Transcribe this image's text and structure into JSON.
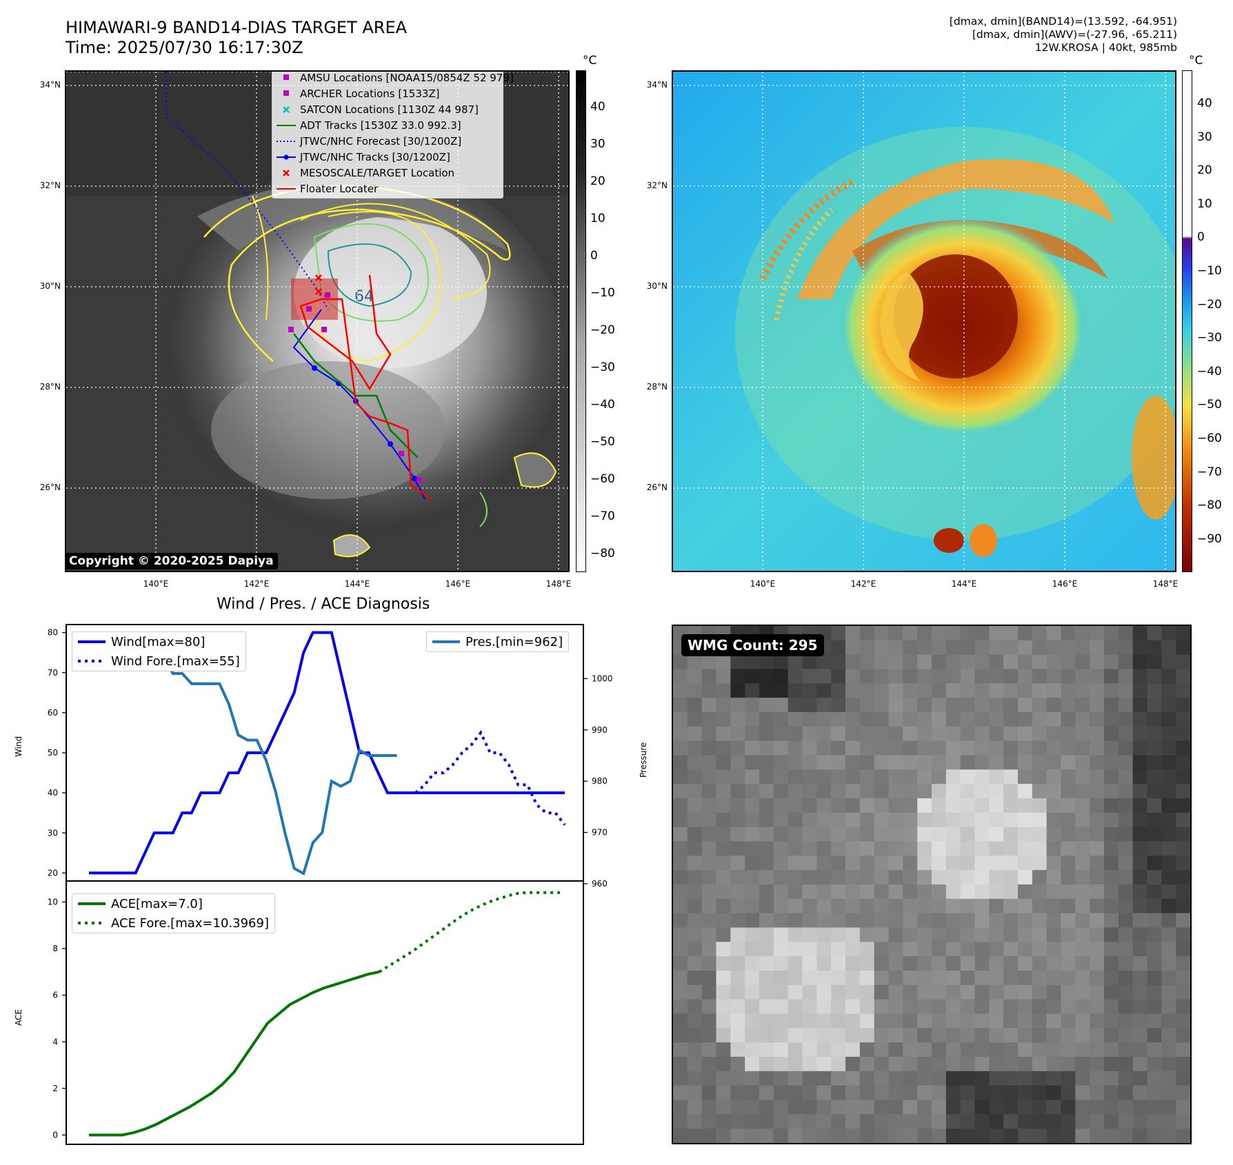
{
  "header": {
    "title_line1": "HIMAWARI-9 BAND14-DIAS TARGET AREA",
    "title_line2": "Time: 2025/07/30 16:17:30Z",
    "info_line1": "[dmax, dmin](BAND14)=(13.592, -64.951)",
    "info_line2": "[dmax, dmin](AWV)=(-27.96, -65.211)",
    "info_line3": "12W.KROSA | 40kt, 985mb"
  },
  "map_axes": {
    "lat_labels": [
      "34°N",
      "32°N",
      "30°N",
      "28°N",
      "26°N"
    ],
    "lon_labels": [
      "140°E",
      "142°E",
      "144°E",
      "146°E",
      "148°E"
    ]
  },
  "left_map": {
    "colorbar_unit": "°C",
    "colorbar_ticks": [
      "40",
      "30",
      "20",
      "10",
      "0",
      "−10",
      "−20",
      "−30",
      "−40",
      "−50",
      "−60",
      "−70",
      "−80"
    ],
    "legend": [
      {
        "label": "AMSU Locations [NOAA15/0854Z 52 979]",
        "symbol": "square",
        "color": "#c000c0"
      },
      {
        "label": "ARCHER Locations [1533Z]",
        "symbol": "square",
        "color": "#c000c0"
      },
      {
        "label": "SATCON Locations [1130Z 44 987]",
        "symbol": "x",
        "color": "#00c0c0"
      },
      {
        "label": "ADT Tracks [1530Z 33.0 992.3]",
        "symbol": "line",
        "color": "#008000"
      },
      {
        "label": "JTWC/NHC Forecast [30/1200Z]",
        "symbol": "dotted",
        "color": "#0000ff"
      },
      {
        "label": "JTWC/NHC Tracks [30/1200Z]",
        "symbol": "line-dot",
        "color": "#0000ff"
      },
      {
        "label": "MESOSCALE/TARGET Location",
        "symbol": "x",
        "color": "#ff0000"
      },
      {
        "label": "Floater Locater",
        "symbol": "line",
        "color": "#ff0000"
      }
    ],
    "contour_label": "64",
    "copyright": "Copyright © 2020-2025 Dapiya"
  },
  "right_map": {
    "colorbar_unit": "°C",
    "colorbar_ticks": [
      "40",
      "30",
      "20",
      "10",
      "0",
      "−10",
      "−20",
      "−30",
      "−40",
      "−50",
      "−60",
      "−70",
      "−80",
      "−90"
    ]
  },
  "wind_panel": {
    "title": "Wind / Pres. / ACE Diagnosis",
    "ylabel_left": "Wind",
    "ylabel_right": "Pressure",
    "ylabel_ace": "ACE",
    "wind_legend": [
      "Wind[max=80]",
      "Wind Fore.[max=55]"
    ],
    "pres_legend": [
      "Pres.[min=962]"
    ],
    "ace_legend": [
      "ACE[max=7.0]",
      "ACE Fore.[max=10.3969]"
    ]
  },
  "wmg_panel": {
    "label": "WMG Count: 295"
  },
  "colors": {
    "wind": "#0000ee",
    "pressure": "#1f77b4",
    "ace": "#007700",
    "jtwc_track": "#0000ff",
    "floater": "#ff0000"
  },
  "chart_data": [
    {
      "type": "line",
      "title": "Wind / Pres. / ACE Diagnosis",
      "ylabel": "Wind",
      "ylim": [
        18,
        82
      ],
      "yticks": [
        20,
        30,
        40,
        50,
        60,
        70,
        80
      ],
      "series": [
        {
          "name": "Wind[max=80]",
          "x": [
            0,
            1,
            2,
            3,
            4,
            5,
            6,
            7,
            8,
            9,
            10,
            11,
            12,
            13,
            14,
            15,
            16,
            17,
            18,
            19,
            20,
            21,
            22,
            23,
            24,
            25,
            26,
            27,
            28,
            29,
            30,
            31,
            32,
            33,
            34,
            35,
            36,
            37,
            38,
            39,
            40,
            41,
            42,
            43,
            44,
            45,
            46,
            47,
            48,
            49,
            50,
            51
          ],
          "values": [
            20,
            20,
            20,
            20,
            20,
            20,
            25,
            30,
            30,
            30,
            35,
            35,
            40,
            40,
            40,
            45,
            45,
            50,
            50,
            50,
            55,
            60,
            65,
            75,
            80,
            80,
            80,
            70,
            60,
            50,
            50,
            45,
            40,
            40,
            40,
            40,
            40,
            40,
            40,
            40,
            40,
            40,
            40,
            40,
            40,
            40,
            40,
            40,
            40,
            40,
            40,
            40
          ]
        },
        {
          "name": "Wind Fore.[max=55]",
          "x": [
            35,
            36,
            37,
            38,
            39,
            40,
            41,
            42,
            43,
            44,
            45,
            46,
            47,
            48,
            49,
            50,
            51
          ],
          "values": [
            40,
            42,
            45,
            45,
            47,
            50,
            52,
            55,
            50,
            50,
            47,
            42,
            42,
            37,
            35,
            35,
            32
          ]
        }
      ]
    },
    {
      "type": "line",
      "ylabel": "Pressure",
      "ylim": [
        960,
        1010
      ],
      "yticks": [
        960,
        970,
        980,
        990,
        1000
      ],
      "series": [
        {
          "name": "Pres.[min=962]",
          "values": [
            1008,
            1008,
            1008,
            1008,
            1006,
            1006,
            1005,
            1004,
            1004,
            1001,
            1001,
            999,
            999,
            999,
            999,
            995,
            989,
            988,
            988,
            984,
            978,
            970,
            963,
            962,
            968,
            970,
            980,
            979,
            980,
            986,
            985,
            985,
            985,
            985
          ]
        }
      ]
    },
    {
      "type": "line",
      "ylabel": "ACE",
      "ylim": [
        -0.4,
        10.9
      ],
      "yticks": [
        0,
        2,
        4,
        6,
        8,
        10
      ],
      "series": [
        {
          "name": "ACE[max=7.0]",
          "values": [
            0,
            0,
            0,
            0,
            0.1,
            0.25,
            0.45,
            0.7,
            0.95,
            1.2,
            1.5,
            1.8,
            2.2,
            2.7,
            3.4,
            4.1,
            4.8,
            5.2,
            5.6,
            5.85,
            6.1,
            6.3,
            6.45,
            6.6,
            6.75,
            6.9,
            7.0
          ]
        },
        {
          "name": "ACE Fore.[max=10.3969]",
          "values": [
            7.0,
            7.3,
            7.6,
            7.9,
            8.25,
            8.6,
            8.95,
            9.3,
            9.6,
            9.85,
            10.05,
            10.2,
            10.35,
            10.4,
            10.4,
            10.4,
            10.4
          ]
        }
      ]
    }
  ]
}
